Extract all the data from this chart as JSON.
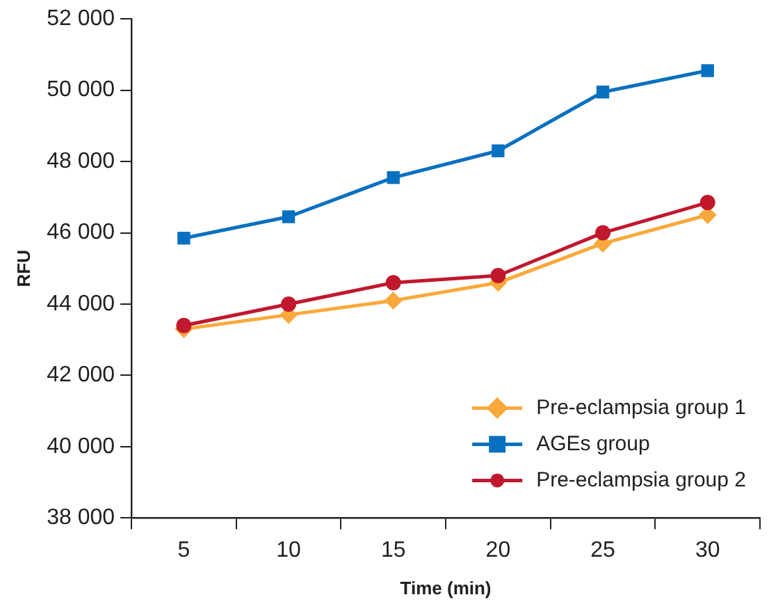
{
  "chart_data": {
    "type": "line",
    "xlabel": "Time (min)",
    "ylabel": "RFU",
    "categories": [
      "5",
      "10",
      "15",
      "20",
      "25",
      "30"
    ],
    "series": [
      {
        "name": "Pre-eclampsia group 1",
        "color": "#f9a93b",
        "marker": "diamond",
        "values": [
          43300,
          43700,
          44100,
          44600,
          45700,
          46500
        ]
      },
      {
        "name": "AGEs group",
        "color": "#0870c0",
        "marker": "square",
        "values": [
          45850,
          46450,
          47550,
          48300,
          49950,
          50550
        ]
      },
      {
        "name": "Pre-eclampsia group 2",
        "color": "#c0182d",
        "marker": "circle",
        "values": [
          43400,
          44000,
          44600,
          44800,
          46000,
          46850
        ]
      }
    ],
    "ylim": [
      38000,
      52000
    ],
    "yticks": [
      {
        "value": 38000,
        "label": "38 000"
      },
      {
        "value": 40000,
        "label": "40 000"
      },
      {
        "value": 42000,
        "label": "42 000"
      },
      {
        "value": 44000,
        "label": "44 000"
      },
      {
        "value": 46000,
        "label": "46 000"
      },
      {
        "value": 48000,
        "label": "48 000"
      },
      {
        "value": 50000,
        "label": "50 000"
      },
      {
        "value": 52000,
        "label": "52 000"
      }
    ],
    "grid": false,
    "legend": "bottom right",
    "line_style": "solid"
  }
}
